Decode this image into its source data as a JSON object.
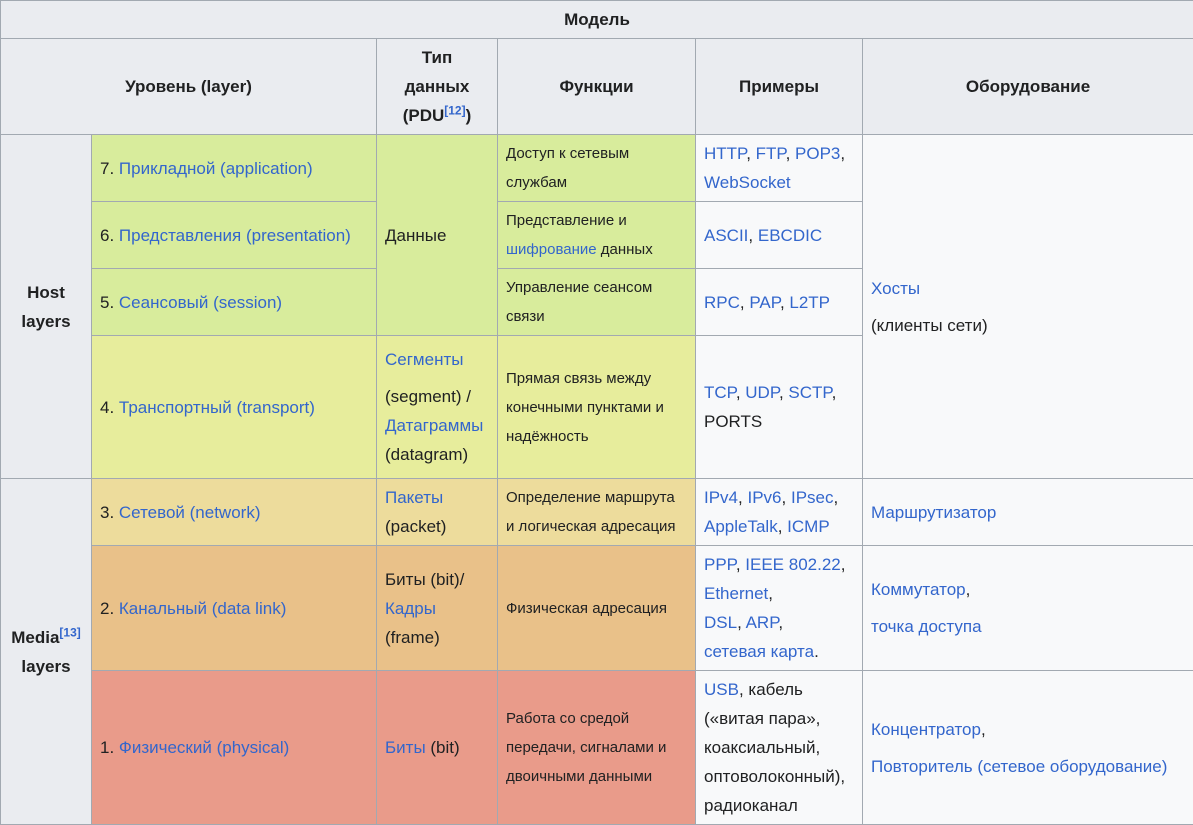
{
  "caption": "Модель",
  "headers": {
    "layer": "Уровень (layer)",
    "pdu_line1": "Тип",
    "pdu_line2": "данных",
    "pdu_line3": "(PDU",
    "pdu_ref": "[12]",
    "pdu_close": ")",
    "functions": "Функции",
    "examples": "Примеры",
    "hardware": "Оборудование"
  },
  "groups": {
    "host_line1": "Host",
    "host_line2": "layers",
    "media_line1": "Media",
    "media_ref": "[13]",
    "media_line2": "layers"
  },
  "rows": {
    "r7": {
      "num": "7. ",
      "name": "Прикладной (application)",
      "func": "Доступ к сетевым службам"
    },
    "r6": {
      "num": "6. ",
      "name": "Представления (presentation)",
      "func1": "Представление и",
      "func_link": "шифрование",
      "func2": " данных"
    },
    "r5": {
      "num": "5. ",
      "name": "Сеансовый (session)",
      "func": "Управление сеансом связи"
    },
    "r4": {
      "num": "4. ",
      "name": "Транспортный (transport)",
      "func": "Прямая связь между конечными пунктами и надёжность"
    },
    "r3": {
      "num": "3. ",
      "name": "Сетевой (network)",
      "func": "Определение маршрута и логическая адресация"
    },
    "r2": {
      "num": "2. ",
      "name": "Канальный (data link)",
      "func": "Физическая адресация"
    },
    "r1": {
      "num": "1. ",
      "name": "Физический (physical)",
      "func": "Работа со средой передачи, сигналами и двоичными данными"
    }
  },
  "pdu": {
    "data": "Данные",
    "segments": "Сегменты",
    "segment_en": "(segment) /",
    "datagrams": "Датаграммы",
    "datagram_en": "(datagram)",
    "packets": "Пакеты",
    "packet_en": "(packet)",
    "bits_bit": "Биты (bit)/",
    "frames": "Кадры",
    "frame_en": "(frame)",
    "bits": "Биты",
    "bit_en": " (bit)"
  },
  "examples": {
    "r7": [
      "HTTP",
      "FTP",
      "POP3",
      "WebSocket"
    ],
    "r6": [
      "ASCII",
      "EBCDIC"
    ],
    "r5": [
      "RPC",
      "PAP",
      "L2TP"
    ],
    "r4": [
      "TCP",
      "UDP",
      "SCTP",
      "PORTS"
    ],
    "r3": [
      "IPv4",
      "IPv6",
      "IPsec",
      "AppleTalk",
      "ICMP"
    ],
    "r2": [
      "PPP",
      "IEEE 802.22",
      "Ethernet",
      "DSL",
      "ARP",
      "сетевая карта"
    ],
    "r1": {
      "link": "USB",
      "text": ", кабель («витая пара», коаксиальный, оптоволоконный), радиоканал"
    }
  },
  "hardware": {
    "hosts": "Хосты",
    "hosts_note": "(клиенты сети)",
    "router": "Маршрутизатор",
    "switch": "Коммутатор",
    "access_point": "точка доступа",
    "hub": "Концентратор",
    "repeater": "Повторитель (сетевое оборудование)"
  }
}
